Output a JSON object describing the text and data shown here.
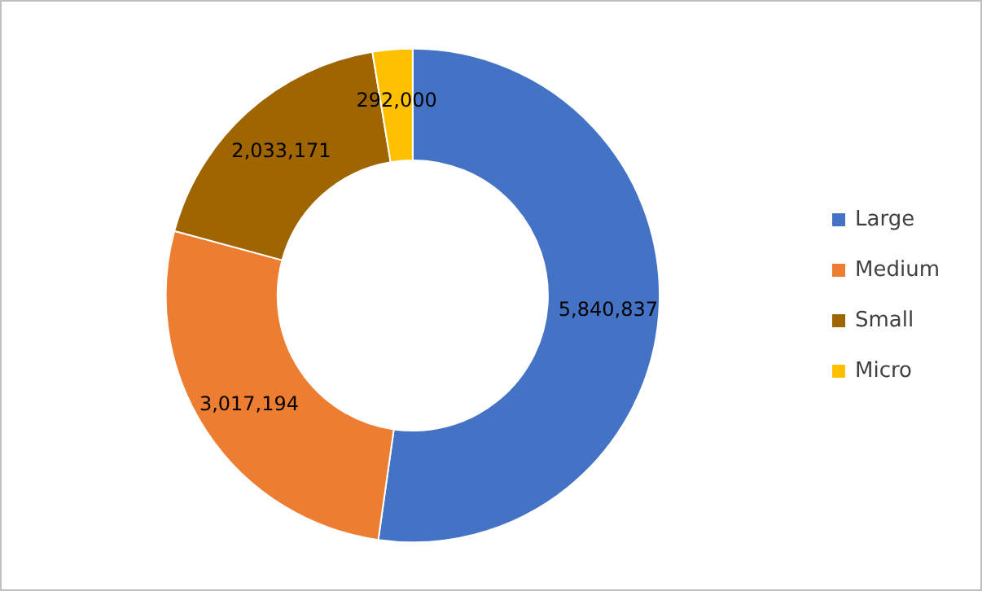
{
  "chart_data": {
    "type": "donut",
    "categories": [
      "Large",
      "Medium",
      "Small",
      "Micro"
    ],
    "values": [
      5840837,
      3017194,
      2033171,
      292000
    ],
    "colors": [
      "#4472c4",
      "#ed7d31",
      "#9e6500",
      "#ffc000"
    ],
    "value_labels": [
      "5,840,837",
      "3,017,194",
      "2,033,171",
      "292,000"
    ],
    "legend": "right"
  }
}
